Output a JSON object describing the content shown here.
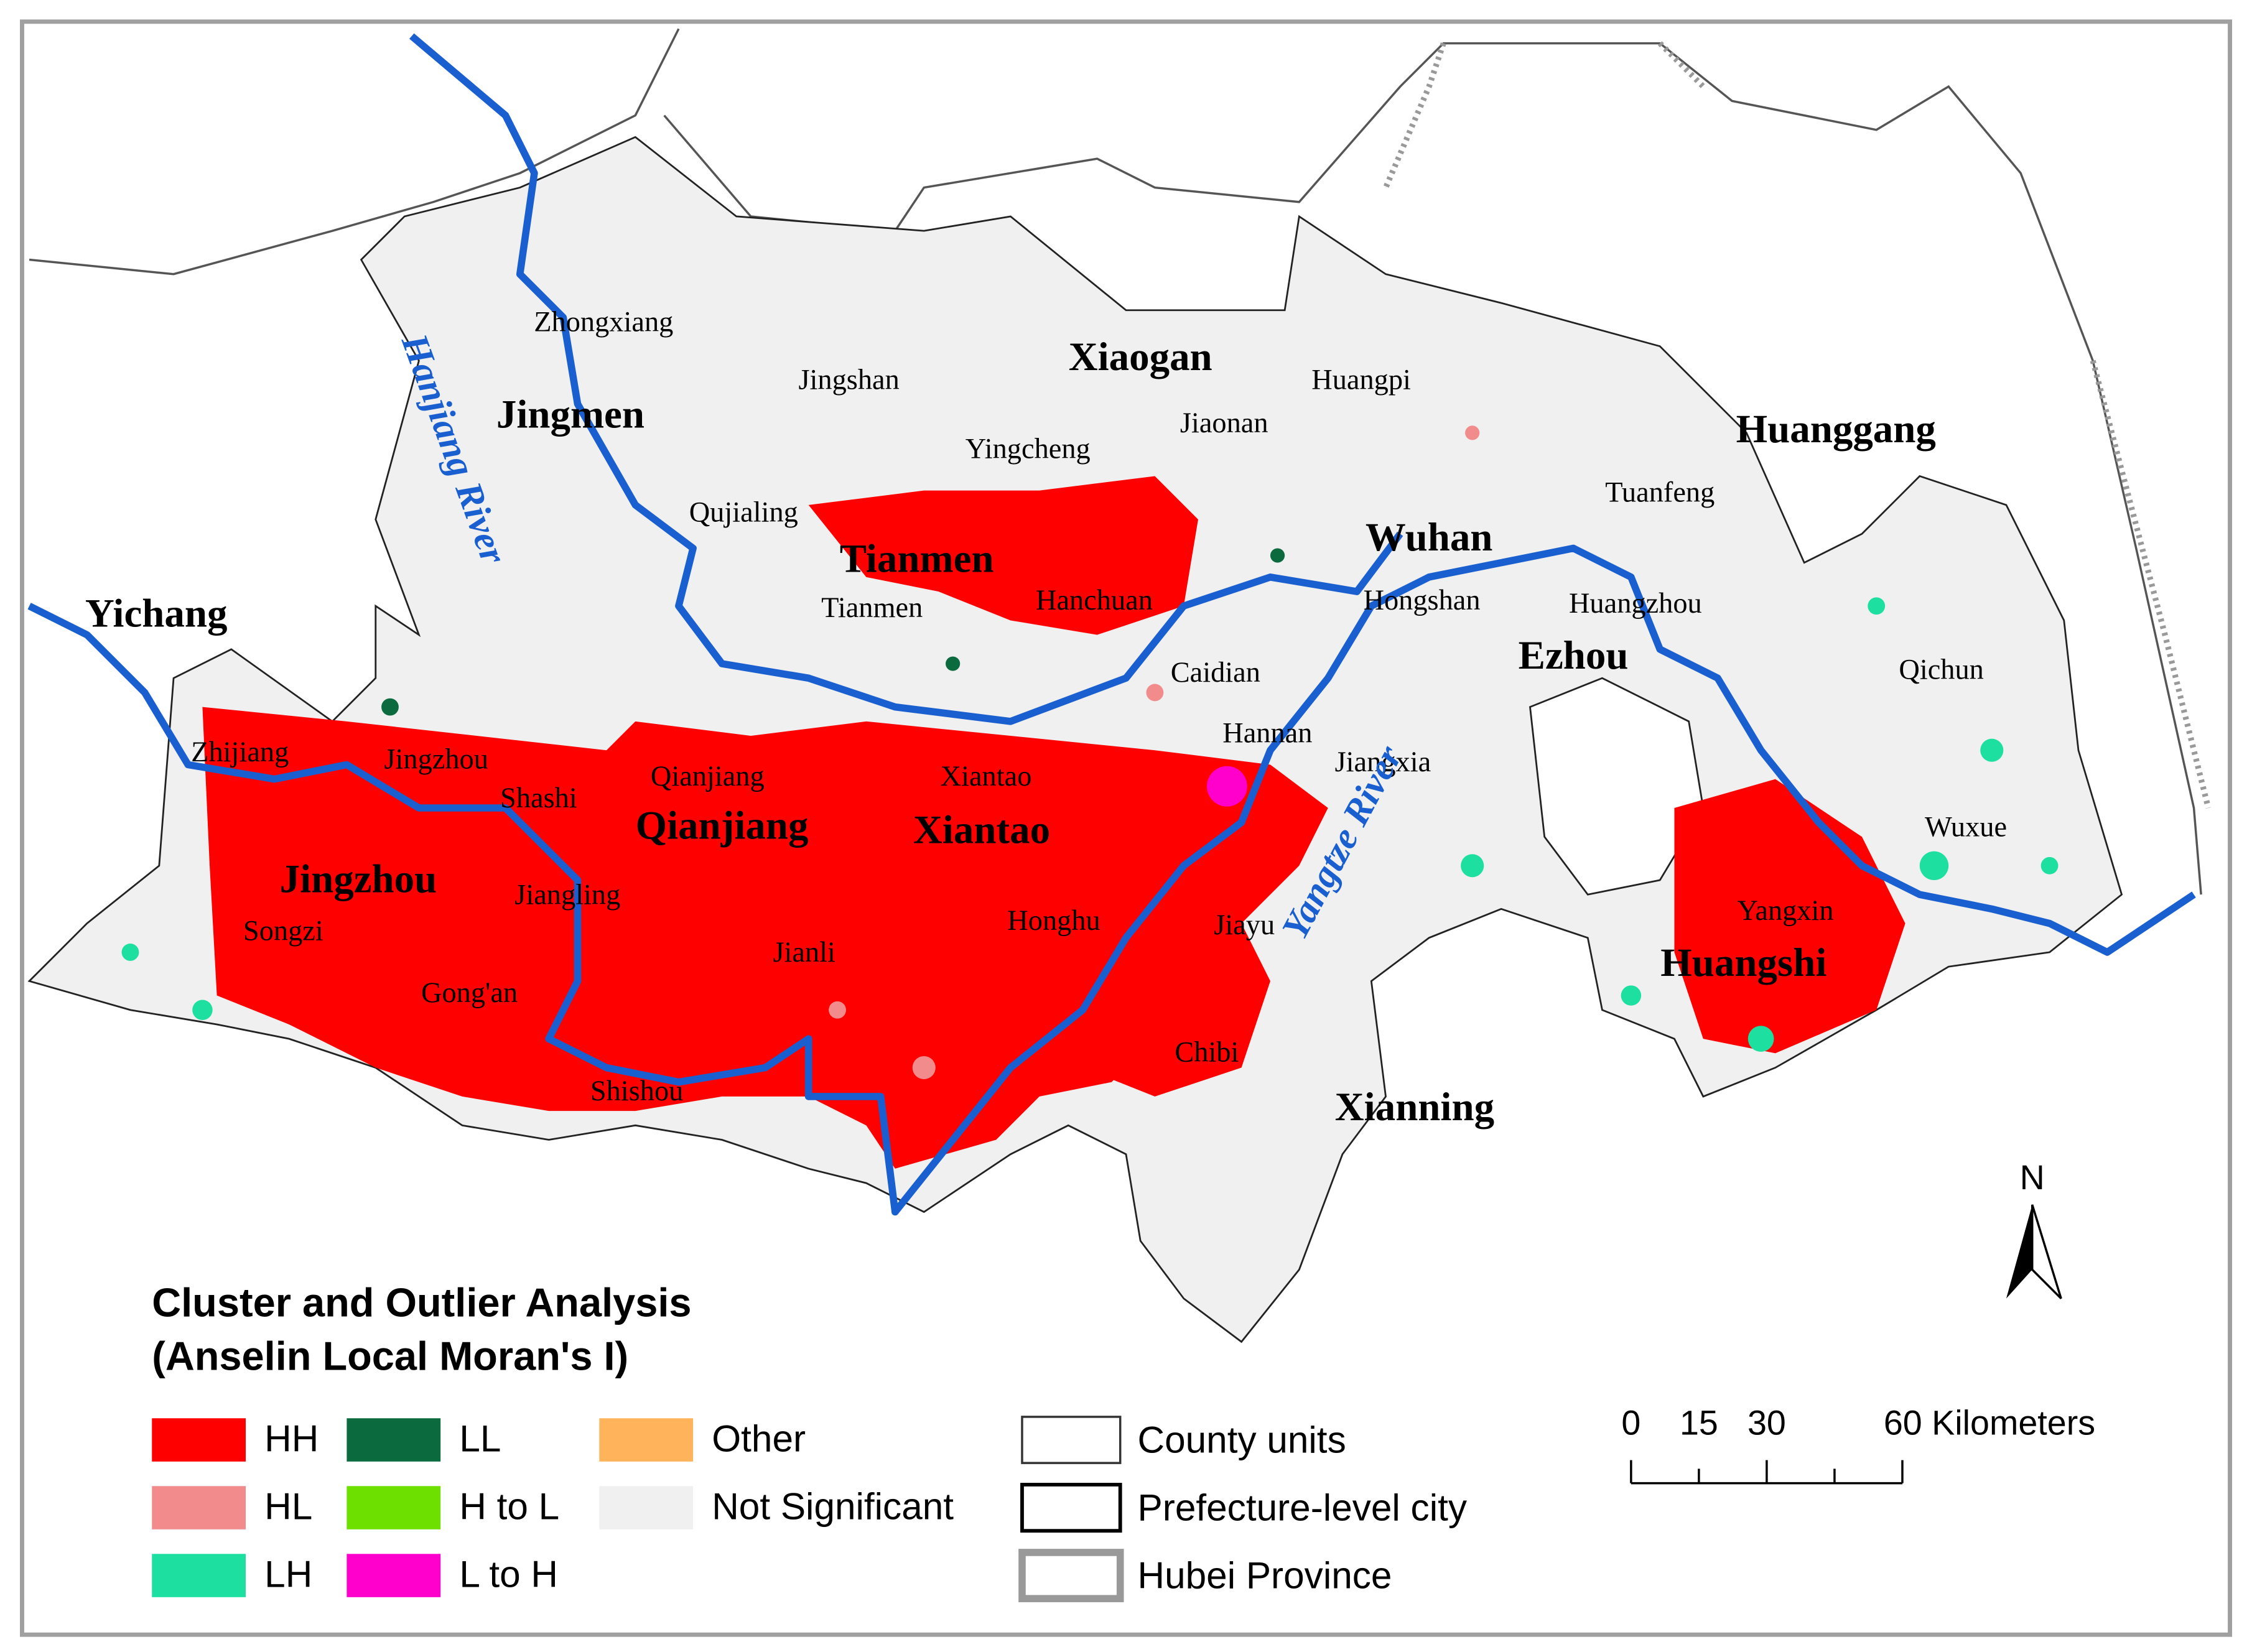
{
  "prefectures": [
    "Jingmen",
    "Xiaogan",
    "Huanggang",
    "Tianmen",
    "Wuhan",
    "Yichang",
    "Ezhou",
    "Qianjiang",
    "Xiantao",
    "Jingzhou",
    "Huangshi",
    "Xianning"
  ],
  "counties": [
    "Zhongxiang",
    "Jingshan",
    "Huangpi",
    "Jiaonan",
    "Yingcheng",
    "Tuanfeng",
    "Qujialing",
    "Tianmen",
    "Hanchuan",
    "Hongshan",
    "Huangzhou",
    "Qichun",
    "Caidian",
    "Hannan",
    "Jiangxia",
    "Zhijiang",
    "Jingzhou",
    "Shashi",
    "Qianjiang",
    "Xiantao",
    "Wuxue",
    "Jiangling",
    "Yangxin",
    "Songzi",
    "Honghu",
    "Jianli",
    "Jiayu",
    "Gong'an",
    "Chibi",
    "Shishou"
  ],
  "rivers": [
    "Hanjiang River",
    "Yangtze River"
  ],
  "north": "N",
  "legend": {
    "title": [
      "Cluster and Outlier Analysis",
      "(Anselin Local Moran's I)"
    ],
    "items": [
      {
        "label": "HH",
        "color": "#ff0000"
      },
      {
        "label": "HL",
        "color": "#f28c8c"
      },
      {
        "label": "LH",
        "color": "#1de0a0"
      },
      {
        "label": "LL",
        "color": "#0b6b3f"
      },
      {
        "label": "H to L",
        "color": "#6ee000"
      },
      {
        "label": "L to H",
        "color": "#ff00cc"
      },
      {
        "label": "Other",
        "color": "#ffb35a"
      },
      {
        "label": "Not Significant",
        "color": "#f0f0f0"
      }
    ],
    "boundaries": [
      "County units",
      "Prefecture-level city",
      "Hubei Province"
    ]
  },
  "scale_bar": {
    "labels": [
      "0",
      "15",
      "30",
      "60 Kilometers"
    ]
  }
}
